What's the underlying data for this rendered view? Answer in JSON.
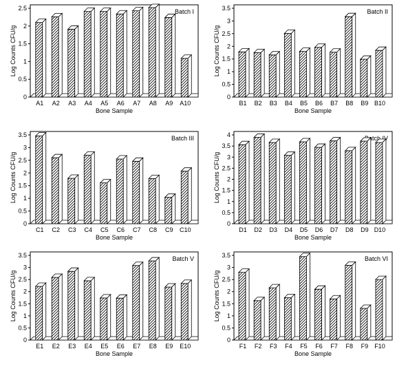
{
  "chart_data": [
    {
      "type": "bar",
      "title": "Batch I",
      "xlabel": "Bone Sample",
      "ylabel": "Log Counts CFU/g",
      "ylim": [
        0,
        2.5
      ],
      "yticks": [
        "0",
        "0.5",
        "1",
        "1.5",
        "2",
        "2.5"
      ],
      "grid": false,
      "bar_style": "3d-hatched",
      "categories": [
        "A1",
        "A2",
        "A3",
        "A4",
        "A5",
        "A6",
        "A7",
        "A8",
        "A9",
        "A10"
      ],
      "values": [
        2.1,
        2.26,
        1.91,
        2.41,
        2.41,
        2.34,
        2.43,
        2.52,
        2.24,
        1.09
      ]
    },
    {
      "type": "bar",
      "title": "Batch II",
      "xlabel": "Bone Sample",
      "ylabel": "Log Counts CFU/g",
      "ylim": [
        0,
        3.5
      ],
      "yticks": [
        "0",
        "0.5",
        "1",
        "1.5",
        "2",
        "2.5",
        "3",
        "3.5"
      ],
      "grid": false,
      "bar_style": "3d-hatched",
      "categories": [
        "B1",
        "B2",
        "B3",
        "B4",
        "B5",
        "B6",
        "B7",
        "B8",
        "B9",
        "B10"
      ],
      "values": [
        1.78,
        1.75,
        1.66,
        2.51,
        1.8,
        1.96,
        1.77,
        3.17,
        1.49,
        1.84
      ]
    },
    {
      "type": "bar",
      "title": "Batch III",
      "xlabel": "Bone Sample",
      "ylabel": "Log Counts CFU/g",
      "ylim": [
        0,
        3.5
      ],
      "yticks": [
        "0",
        "0.5",
        "1",
        "1.5",
        "2",
        "2.5",
        "3",
        "3.5"
      ],
      "grid": false,
      "bar_style": "3d-hatched",
      "categories": [
        "C1",
        "C2",
        "C3",
        "C4",
        "C5",
        "C6",
        "C7",
        "C8",
        "C9",
        "C10"
      ],
      "values": [
        3.46,
        2.6,
        1.79,
        2.7,
        1.61,
        2.55,
        2.46,
        1.78,
        1.04,
        2.07
      ]
    },
    {
      "type": "bar",
      "title": "Batch IV",
      "xlabel": "Bone Sample",
      "ylabel": "Log Counts CFU/g",
      "ylim": [
        0,
        4
      ],
      "yticks": [
        "0",
        "0.5",
        "1",
        "1.5",
        "2",
        "2.5",
        "3",
        "3.5",
        "4"
      ],
      "grid": false,
      "bar_style": "3d-hatched",
      "categories": [
        "D1",
        "D2",
        "D3",
        "D4",
        "D5",
        "D6",
        "D7",
        "D8",
        "D9",
        "D10"
      ],
      "values": [
        3.56,
        3.89,
        3.66,
        3.08,
        3.69,
        3.44,
        3.73,
        3.29,
        3.72,
        3.66
      ]
    },
    {
      "type": "bar",
      "title": "Batch V",
      "xlabel": "Bone Sample",
      "ylabel": "Log Counts CFU/g",
      "ylim": [
        0,
        3.5
      ],
      "yticks": [
        "0",
        "0.5",
        "1",
        "1.5",
        "2",
        "2.5",
        "3",
        "3.5"
      ],
      "grid": false,
      "bar_style": "3d-hatched",
      "categories": [
        "E1",
        "E2",
        "E3",
        "E4",
        "E5",
        "E6",
        "E7",
        "E8",
        "E9",
        "E10"
      ],
      "values": [
        2.22,
        2.59,
        2.84,
        2.45,
        1.74,
        1.73,
        3.08,
        3.27,
        2.19,
        2.34
      ]
    },
    {
      "type": "bar",
      "title": "Batch VI",
      "xlabel": "Bone Sample",
      "ylabel": "Log Counts CFU/g",
      "ylim": [
        0,
        3.5
      ],
      "yticks": [
        "0",
        "0.5",
        "1",
        "1.5",
        "2",
        "2.5",
        "3",
        "3.5"
      ],
      "grid": false,
      "bar_style": "3d-hatched",
      "categories": [
        "F1",
        "F2",
        "F3",
        "F4",
        "F5",
        "F6",
        "F7",
        "F8",
        "F9",
        "F10"
      ],
      "values": [
        2.8,
        1.63,
        2.16,
        1.75,
        3.45,
        2.1,
        1.7,
        3.09,
        1.31,
        2.5
      ]
    }
  ]
}
